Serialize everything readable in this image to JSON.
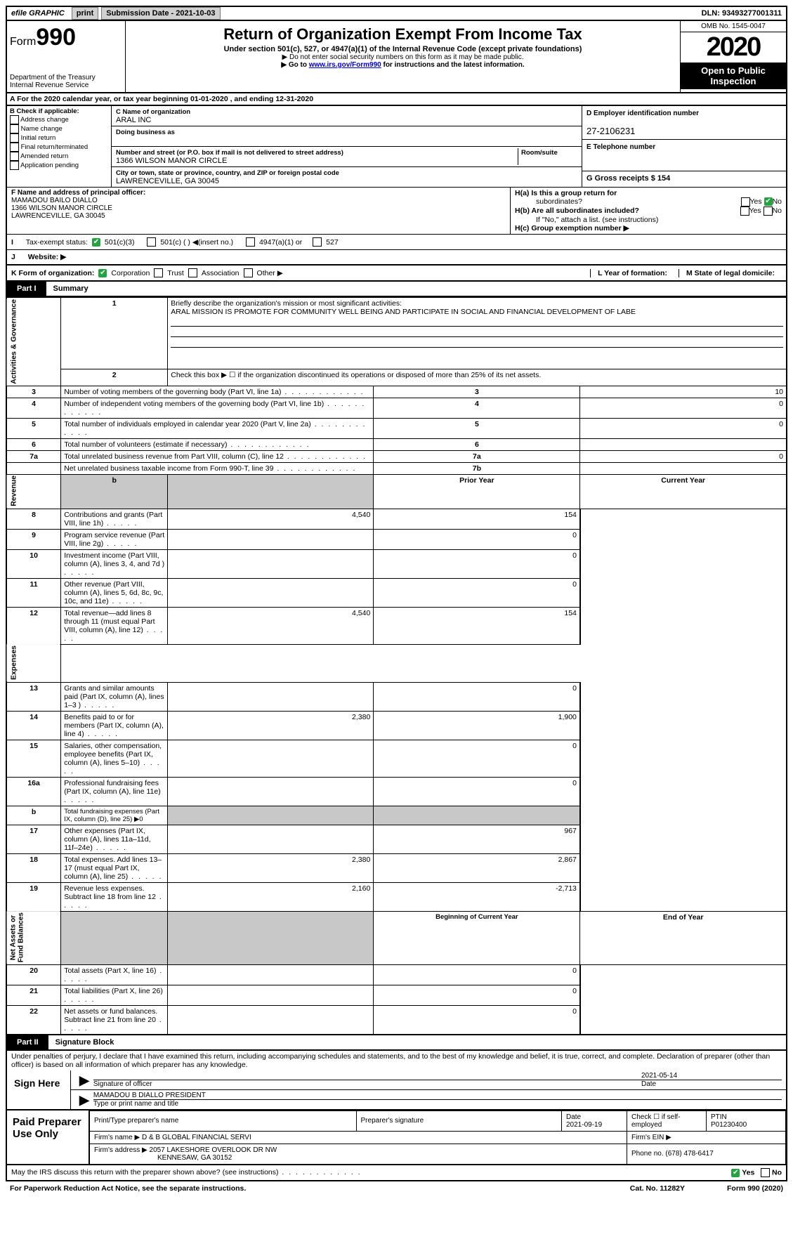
{
  "topbar": {
    "efile": "efile GRAPHIC",
    "print": "print",
    "subdate_lbl": "Submission Date - 2021-10-03",
    "dln": "DLN: 93493277001311"
  },
  "header": {
    "form_word": "Form",
    "form_num": "990",
    "title": "Return of Organization Exempt From Income Tax",
    "sub": "Under section 501(c), 527, or 4947(a)(1) of the Internal Revenue Code (except private foundations)",
    "note1": "▶ Do not enter social security numbers on this form as it may be made public.",
    "note2_pre": "▶ Go to ",
    "note2_link": "www.irs.gov/Form990",
    "note2_post": " for instructions and the latest information.",
    "dept": "Department of the Treasury\nInternal Revenue Service",
    "omb": "OMB No. 1545-0047",
    "year": "2020",
    "openpub": "Open to Public Inspection"
  },
  "rowA": "A For the 2020 calendar year, or tax year beginning 01-01-2020   , and ending 12-31-2020",
  "B": {
    "hdr": "B Check if applicable:",
    "items": [
      "Address change",
      "Name change",
      "Initial return",
      "Final return/terminated",
      "Amended return",
      "Application pending"
    ]
  },
  "C": {
    "name_lbl": "C Name of organization",
    "name": "ARAL INC",
    "dba_lbl": "Doing business as",
    "dba": "",
    "addr_lbl": "Number and street (or P.O. box if mail is not delivered to street address)",
    "room_lbl": "Room/suite",
    "addr": "1366 WILSON MANOR CIRCLE",
    "city_lbl": "City or town, state or province, country, and ZIP or foreign postal code",
    "city": "LAWRENCEVILLE, GA  30045"
  },
  "D": {
    "lbl": "D Employer identification number",
    "val": "27-2106231"
  },
  "E": {
    "lbl": "E Telephone number",
    "val": ""
  },
  "G": {
    "lbl": "G Gross receipts $",
    "val": "154"
  },
  "F": {
    "lbl": "F  Name and address of principal officer:",
    "l1": "MAMADOU BAILO DIALLO",
    "l2": "1366 WILSON MANOR CIRCLE",
    "l3": "LAWRENCEVILLE, GA  30045"
  },
  "H": {
    "a": "H(a)  Is this a group return for",
    "a2": "subordinates?",
    "b": "H(b)  Are all subordinates included?",
    "note": "If \"No,\" attach a list. (see instructions)",
    "c": "H(c)  Group exemption number ▶",
    "yes": "Yes",
    "no": "No"
  },
  "I": {
    "lbl": "Tax-exempt status:",
    "o1": "501(c)(3)",
    "o2": "501(c) (  ) ◀(insert no.)",
    "o3": "4947(a)(1) or",
    "o4": "527"
  },
  "J": {
    "lbl": "Website: ▶"
  },
  "K": {
    "lbl": "K Form of organization:",
    "o1": "Corporation",
    "o2": "Trust",
    "o3": "Association",
    "o4": "Other ▶",
    "L": "L Year of formation:",
    "M": "M State of legal domicile:"
  },
  "PartI": {
    "tag": "Part I",
    "title": "Summary"
  },
  "summary": {
    "q1": "Briefly describe the organization's mission or most significant activities:",
    "mission": "ARAL MISSION IS PROMOTE FOR COMMUNITY WELL BEING AND PARTICIPATE IN SOCIAL AND FINANCIAL DEVELOPMENT OF LABE",
    "q2": "Check this box ▶ ☐  if the organization discontinued its operations or disposed of more than 25% of its net assets.",
    "rows": [
      {
        "n": "3",
        "t": "Number of voting members of the governing body (Part VI, line 1a)",
        "box": "3",
        "v": "10"
      },
      {
        "n": "4",
        "t": "Number of independent voting members of the governing body (Part VI, line 1b)",
        "box": "4",
        "v": "0"
      },
      {
        "n": "5",
        "t": "Total number of individuals employed in calendar year 2020 (Part V, line 2a)",
        "box": "5",
        "v": "0"
      },
      {
        "n": "6",
        "t": "Total number of volunteers (estimate if necessary)",
        "box": "6",
        "v": ""
      },
      {
        "n": "7a",
        "t": "Total unrelated business revenue from Part VIII, column (C), line 12",
        "box": "7a",
        "v": "0"
      },
      {
        "n": "",
        "t": "Net unrelated business taxable income from Form 990-T, line 39",
        "box": "7b",
        "v": ""
      }
    ],
    "hdr_prior": "Prior Year",
    "hdr_curr": "Current Year",
    "rev": [
      {
        "n": "8",
        "t": "Contributions and grants (Part VIII, line 1h)",
        "p": "4,540",
        "c": "154"
      },
      {
        "n": "9",
        "t": "Program service revenue (Part VIII, line 2g)",
        "p": "",
        "c": "0"
      },
      {
        "n": "10",
        "t": "Investment income (Part VIII, column (A), lines 3, 4, and 7d )",
        "p": "",
        "c": "0"
      },
      {
        "n": "11",
        "t": "Other revenue (Part VIII, column (A), lines 5, 6d, 8c, 9c, 10c, and 11e)",
        "p": "",
        "c": "0"
      },
      {
        "n": "12",
        "t": "Total revenue—add lines 8 through 11 (must equal Part VIII, column (A), line 12)",
        "p": "4,540",
        "c": "154"
      }
    ],
    "exp": [
      {
        "n": "13",
        "t": "Grants and similar amounts paid (Part IX, column (A), lines 1–3 )",
        "p": "",
        "c": "0"
      },
      {
        "n": "14",
        "t": "Benefits paid to or for members (Part IX, column (A), line 4)",
        "p": "2,380",
        "c": "1,900"
      },
      {
        "n": "15",
        "t": "Salaries, other compensation, employee benefits (Part IX, column (A), lines 5–10)",
        "p": "",
        "c": "0"
      },
      {
        "n": "16a",
        "t": "Professional fundraising fees (Part IX, column (A), line 11e)",
        "p": "",
        "c": "0"
      },
      {
        "n": "b",
        "t": "Total fundraising expenses (Part IX, column (D), line 25) ▶0",
        "p": "SHADE",
        "c": "SHADE"
      },
      {
        "n": "17",
        "t": "Other expenses (Part IX, column (A), lines 11a–11d, 11f–24e)",
        "p": "",
        "c": "967"
      },
      {
        "n": "18",
        "t": "Total expenses. Add lines 13–17 (must equal Part IX, column (A), line 25)",
        "p": "2,380",
        "c": "2,867"
      },
      {
        "n": "19",
        "t": "Revenue less expenses. Subtract line 18 from line 12",
        "p": "2,160",
        "c": "-2,713"
      }
    ],
    "hdr_beg": "Beginning of Current Year",
    "hdr_end": "End of Year",
    "net": [
      {
        "n": "20",
        "t": "Total assets (Part X, line 16)",
        "p": "",
        "c": "0"
      },
      {
        "n": "21",
        "t": "Total liabilities (Part X, line 26)",
        "p": "",
        "c": "0"
      },
      {
        "n": "22",
        "t": "Net assets or fund balances. Subtract line 21 from line 20",
        "p": "",
        "c": "0"
      }
    ],
    "vlab_ag": "Activities & Governance",
    "vlab_rev": "Revenue",
    "vlab_exp": "Expenses",
    "vlab_net": "Net Assets or\nFund Balances"
  },
  "PartII": {
    "tag": "Part II",
    "title": "Signature Block",
    "decl": "Under penalties of perjury, I declare that I have examined this return, including accompanying schedules and statements, and to the best of my knowledge and belief, it is true, correct, and complete. Declaration of preparer (other than officer) is based on all information of which preparer has any knowledge."
  },
  "sign": {
    "here": "Sign Here",
    "sig_lbl": "Signature of officer",
    "date": "2021-05-14",
    "date_lbl": "Date",
    "name": "MAMADOU B DIALLO  PRESIDENT",
    "name_lbl": "Type or print name and title"
  },
  "paid": {
    "hdr": "Paid Preparer Use Only",
    "c1": "Print/Type preparer's name",
    "c2": "Preparer's signature",
    "c3": "Date",
    "c3v": "2021-09-19",
    "c4": "Check ☐ if self-employed",
    "c5": "PTIN",
    "c5v": "P01230400",
    "firm_lbl": "Firm's name    ▶",
    "firm": "D & B GLOBAL FINANCIAL SERVI",
    "ein_lbl": "Firm's EIN ▶",
    "addr_lbl": "Firm's address ▶",
    "addr1": "2057 LAKESHORE OVERLOOK DR NW",
    "addr2": "KENNESAW, GA  30152",
    "phone_lbl": "Phone no.",
    "phone": "(678) 478-6417"
  },
  "footer": {
    "q": "May the IRS discuss this return with the preparer shown above? (see instructions)",
    "notice": "For Paperwork Reduction Act Notice, see the separate instructions.",
    "cat": "Cat. No. 11282Y",
    "form": "Form 990 (2020)",
    "yes": "Yes",
    "no": "No"
  }
}
